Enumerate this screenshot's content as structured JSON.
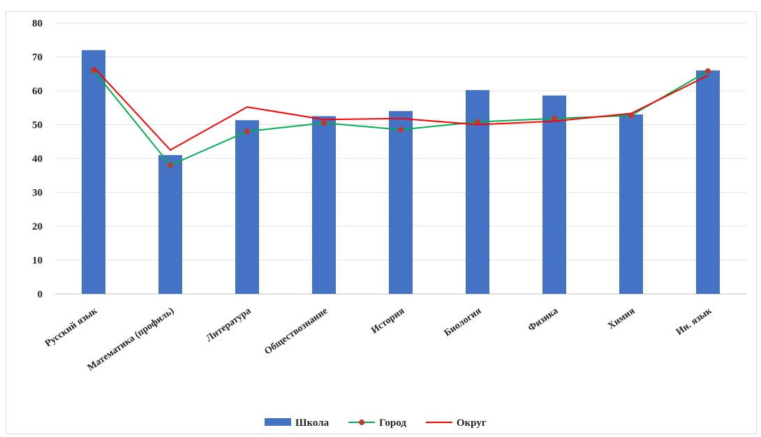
{
  "chart_data": {
    "type": "bar",
    "categories": [
      "Русский язык",
      "Математика  (профиль)",
      "Литература",
      "Обществознание",
      "История",
      "Биология",
      "Физика",
      "Химия",
      "Ин. язык"
    ],
    "series": [
      {
        "name": "Школа",
        "kind": "bar",
        "color": "#4472c4",
        "values": [
          72,
          41,
          51.3,
          52.5,
          54,
          60.2,
          58.6,
          53,
          66
        ]
      },
      {
        "name": "Город",
        "kind": "line",
        "color": "#00b050",
        "marker_color": "#c0392b",
        "values": [
          66,
          38,
          48,
          50.5,
          48.5,
          50.8,
          51.8,
          52.7,
          65.8
        ]
      },
      {
        "name": "Округ",
        "kind": "line",
        "color": "#ff0000",
        "values": [
          67,
          42.5,
          55.2,
          51.5,
          51.8,
          50,
          51,
          53.3,
          64.5
        ]
      }
    ],
    "yticks": [
      "0",
      "10",
      "20",
      "30",
      "40",
      "50",
      "60",
      "70",
      "80"
    ],
    "ylim": [
      0,
      80
    ],
    "grid": true,
    "legend": "bottom"
  }
}
